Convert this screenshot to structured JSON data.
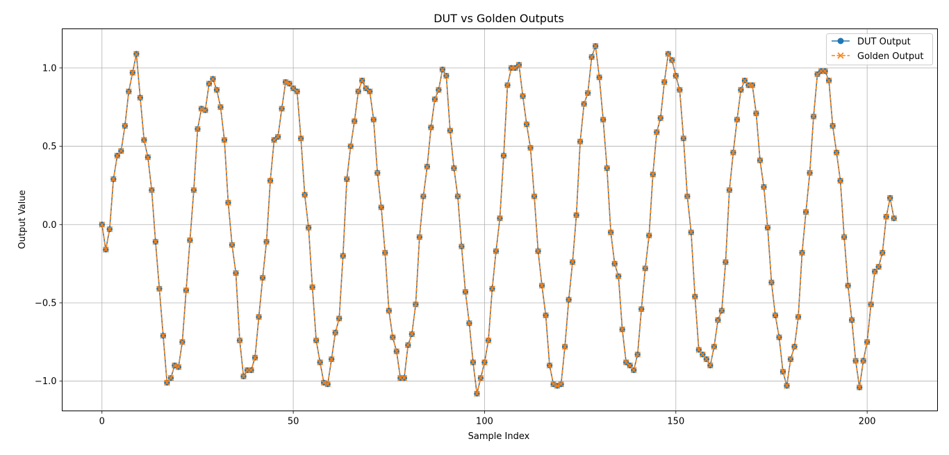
{
  "chart_data": {
    "type": "line",
    "title": "DUT vs Golden Outputs",
    "xlabel": "Sample Index",
    "ylabel": "Output Value",
    "xlim": [
      -10.4,
      218.4
    ],
    "ylim": [
      -1.19,
      1.25
    ],
    "xticks": [
      0,
      50,
      100,
      150,
      200
    ],
    "yticks": [
      -1.0,
      -0.5,
      0.0,
      0.5,
      1.0
    ],
    "xtick_labels": [
      "0",
      "50",
      "100",
      "150",
      "200"
    ],
    "ytick_labels": [
      "−1.0",
      "−0.5",
      "0.0",
      "0.5",
      "1.0"
    ],
    "grid": true,
    "legend_position": "top-right",
    "series": [
      {
        "name": "DUT Output",
        "color": "#1f77b4",
        "marker": "circle",
        "linestyle": "solid",
        "x": [
          0,
          1,
          2,
          3,
          4,
          5,
          6,
          7,
          8,
          9,
          10,
          11,
          12,
          13,
          14,
          15,
          16,
          17,
          18,
          19,
          20,
          21,
          22,
          23,
          24,
          25,
          26,
          27,
          28,
          29,
          30,
          31,
          32,
          33,
          34,
          35,
          36,
          37,
          38,
          39,
          40,
          41,
          42,
          43,
          44,
          45,
          46,
          47,
          48,
          49,
          50,
          51,
          52,
          53,
          54,
          55,
          56,
          57,
          58,
          59,
          60,
          61,
          62,
          63,
          64,
          65,
          66,
          67,
          68,
          69,
          70,
          71,
          72,
          73,
          74,
          75,
          76,
          77,
          78,
          79,
          80,
          81,
          82,
          83,
          84,
          85,
          86,
          87,
          88,
          89,
          90,
          91,
          92,
          93,
          94,
          95,
          96,
          97,
          98,
          99,
          100,
          101,
          102,
          103,
          104,
          105,
          106,
          107,
          108,
          109,
          110,
          111,
          112,
          113,
          114,
          115,
          116,
          117,
          118,
          119,
          120,
          121,
          122,
          123,
          124,
          125,
          126,
          127,
          128,
          129,
          130,
          131,
          132,
          133,
          134,
          135,
          136,
          137,
          138,
          139,
          140,
          141,
          142,
          143,
          144,
          145,
          146,
          147,
          148,
          149,
          150,
          151,
          152,
          153,
          154,
          155,
          156,
          157,
          158,
          159,
          160,
          161,
          162,
          163,
          164,
          165,
          166,
          167,
          168,
          169,
          170,
          171,
          172,
          173,
          174,
          175,
          176,
          177,
          178,
          179,
          180,
          181,
          182,
          183,
          184,
          185,
          186,
          187,
          188,
          189,
          190,
          191,
          192,
          193,
          194,
          195,
          196,
          197,
          198,
          199,
          200,
          201,
          202,
          203,
          204,
          205,
          206,
          207
        ],
        "values": [
          0.0,
          -0.16,
          -0.03,
          0.29,
          0.44,
          0.47,
          0.63,
          0.85,
          0.97,
          1.09,
          0.81,
          0.54,
          0.43,
          0.22,
          -0.11,
          -0.41,
          -0.71,
          -1.01,
          -0.98,
          -0.9,
          -0.91,
          -0.75,
          -0.42,
          -0.1,
          0.22,
          0.61,
          0.74,
          0.73,
          0.9,
          0.93,
          0.86,
          0.75,
          0.54,
          0.14,
          -0.13,
          -0.31,
          -0.74,
          -0.97,
          -0.93,
          -0.93,
          -0.85,
          -0.59,
          -0.34,
          -0.11,
          0.28,
          0.54,
          0.56,
          0.74,
          0.91,
          0.9,
          0.87,
          0.85,
          0.55,
          0.19,
          -0.02,
          -0.4,
          -0.74,
          -0.88,
          -1.01,
          -1.02,
          -0.86,
          -0.69,
          -0.6,
          -0.2,
          0.29,
          0.5,
          0.66,
          0.85,
          0.92,
          0.87,
          0.85,
          0.67,
          0.33,
          0.11,
          -0.18,
          -0.55,
          -0.72,
          -0.81,
          -0.98,
          -0.98,
          -0.77,
          -0.7,
          -0.51,
          -0.08,
          0.18,
          0.37,
          0.62,
          0.8,
          0.86,
          0.99,
          0.95,
          0.6,
          0.36,
          0.18,
          -0.14,
          -0.43,
          -0.63,
          -0.88,
          -1.08,
          -0.98,
          -0.88,
          -0.74,
          -0.41,
          -0.17,
          0.04,
          0.44,
          0.89,
          1.0,
          1.0,
          1.02,
          0.82,
          0.64,
          0.49,
          0.18,
          -0.17,
          -0.39,
          -0.58,
          -0.9,
          -1.02,
          -1.03,
          -1.02,
          -0.78,
          -0.48,
          -0.24,
          0.06,
          0.53,
          0.77,
          0.84,
          1.07,
          1.14,
          0.94,
          0.67,
          0.36,
          -0.05,
          -0.25,
          -0.33,
          -0.67,
          -0.88,
          -0.9,
          -0.93,
          -0.83,
          -0.54,
          -0.28,
          -0.07,
          0.32,
          0.59,
          0.68,
          0.91,
          1.09,
          1.05,
          0.95,
          0.86,
          0.55,
          0.18,
          -0.05,
          -0.46,
          -0.8,
          -0.83,
          -0.86,
          -0.9,
          -0.78,
          -0.61,
          -0.55,
          -0.24,
          0.22,
          0.46,
          0.67,
          0.86,
          0.92,
          0.89,
          0.89,
          0.71,
          0.41,
          0.24,
          -0.02,
          -0.37,
          -0.58,
          -0.72,
          -0.94,
          -1.03,
          -0.86,
          -0.78,
          -0.59,
          -0.18,
          0.08,
          0.33,
          0.69,
          0.96,
          0.98,
          0.98,
          0.92,
          0.63,
          0.46,
          0.28,
          -0.08,
          -0.39,
          -0.61,
          -0.87,
          -1.04,
          -0.87,
          -0.75,
          -0.51,
          -0.3,
          -0.27,
          -0.18,
          0.05,
          0.17,
          0.04
        ]
      },
      {
        "name": "Golden Output",
        "color": "#ff7f0e",
        "marker": "x",
        "linestyle": "dashed",
        "x": [
          0,
          1,
          2,
          3,
          4,
          5,
          6,
          7,
          8,
          9,
          10,
          11,
          12,
          13,
          14,
          15,
          16,
          17,
          18,
          19,
          20,
          21,
          22,
          23,
          24,
          25,
          26,
          27,
          28,
          29,
          30,
          31,
          32,
          33,
          34,
          35,
          36,
          37,
          38,
          39,
          40,
          41,
          42,
          43,
          44,
          45,
          46,
          47,
          48,
          49,
          50,
          51,
          52,
          53,
          54,
          55,
          56,
          57,
          58,
          59,
          60,
          61,
          62,
          63,
          64,
          65,
          66,
          67,
          68,
          69,
          70,
          71,
          72,
          73,
          74,
          75,
          76,
          77,
          78,
          79,
          80,
          81,
          82,
          83,
          84,
          85,
          86,
          87,
          88,
          89,
          90,
          91,
          92,
          93,
          94,
          95,
          96,
          97,
          98,
          99,
          100,
          101,
          102,
          103,
          104,
          105,
          106,
          107,
          108,
          109,
          110,
          111,
          112,
          113,
          114,
          115,
          116,
          117,
          118,
          119,
          120,
          121,
          122,
          123,
          124,
          125,
          126,
          127,
          128,
          129,
          130,
          131,
          132,
          133,
          134,
          135,
          136,
          137,
          138,
          139,
          140,
          141,
          142,
          143,
          144,
          145,
          146,
          147,
          148,
          149,
          150,
          151,
          152,
          153,
          154,
          155,
          156,
          157,
          158,
          159,
          160,
          161,
          162,
          163,
          164,
          165,
          166,
          167,
          168,
          169,
          170,
          171,
          172,
          173,
          174,
          175,
          176,
          177,
          178,
          179,
          180,
          181,
          182,
          183,
          184,
          185,
          186,
          187,
          188,
          189,
          190,
          191,
          192,
          193,
          194,
          195,
          196,
          197,
          198,
          199,
          200,
          201,
          202,
          203,
          204,
          205,
          206,
          207
        ],
        "values": [
          0.0,
          -0.16,
          -0.03,
          0.29,
          0.44,
          0.47,
          0.63,
          0.85,
          0.97,
          1.09,
          0.81,
          0.54,
          0.43,
          0.22,
          -0.11,
          -0.41,
          -0.71,
          -1.01,
          -0.98,
          -0.9,
          -0.91,
          -0.75,
          -0.42,
          -0.1,
          0.22,
          0.61,
          0.74,
          0.73,
          0.9,
          0.93,
          0.86,
          0.75,
          0.54,
          0.14,
          -0.13,
          -0.31,
          -0.74,
          -0.97,
          -0.93,
          -0.93,
          -0.85,
          -0.59,
          -0.34,
          -0.11,
          0.28,
          0.54,
          0.56,
          0.74,
          0.91,
          0.9,
          0.87,
          0.85,
          0.55,
          0.19,
          -0.02,
          -0.4,
          -0.74,
          -0.88,
          -1.01,
          -1.02,
          -0.86,
          -0.69,
          -0.6,
          -0.2,
          0.29,
          0.5,
          0.66,
          0.85,
          0.92,
          0.87,
          0.85,
          0.67,
          0.33,
          0.11,
          -0.18,
          -0.55,
          -0.72,
          -0.81,
          -0.98,
          -0.98,
          -0.77,
          -0.7,
          -0.51,
          -0.08,
          0.18,
          0.37,
          0.62,
          0.8,
          0.86,
          0.99,
          0.95,
          0.6,
          0.36,
          0.18,
          -0.14,
          -0.43,
          -0.63,
          -0.88,
          -1.08,
          -0.98,
          -0.88,
          -0.74,
          -0.41,
          -0.17,
          0.04,
          0.44,
          0.89,
          1.0,
          1.0,
          1.02,
          0.82,
          0.64,
          0.49,
          0.18,
          -0.17,
          -0.39,
          -0.58,
          -0.9,
          -1.02,
          -1.03,
          -1.02,
          -0.78,
          -0.48,
          -0.24,
          0.06,
          0.53,
          0.77,
          0.84,
          1.07,
          1.14,
          0.94,
          0.67,
          0.36,
          -0.05,
          -0.25,
          -0.33,
          -0.67,
          -0.88,
          -0.9,
          -0.93,
          -0.83,
          -0.54,
          -0.28,
          -0.07,
          0.32,
          0.59,
          0.68,
          0.91,
          1.09,
          1.05,
          0.95,
          0.86,
          0.55,
          0.18,
          -0.05,
          -0.46,
          -0.8,
          -0.83,
          -0.86,
          -0.9,
          -0.78,
          -0.61,
          -0.55,
          -0.24,
          0.22,
          0.46,
          0.67,
          0.86,
          0.92,
          0.89,
          0.89,
          0.71,
          0.41,
          0.24,
          -0.02,
          -0.37,
          -0.58,
          -0.72,
          -0.94,
          -1.03,
          -0.86,
          -0.78,
          -0.59,
          -0.18,
          0.08,
          0.33,
          0.69,
          0.96,
          0.98,
          0.98,
          0.92,
          0.63,
          0.46,
          0.28,
          -0.08,
          -0.39,
          -0.61,
          -0.87,
          -1.04,
          -0.87,
          -0.75,
          -0.51,
          -0.3,
          -0.27,
          -0.18,
          0.05,
          0.17,
          0.04
        ]
      }
    ]
  }
}
